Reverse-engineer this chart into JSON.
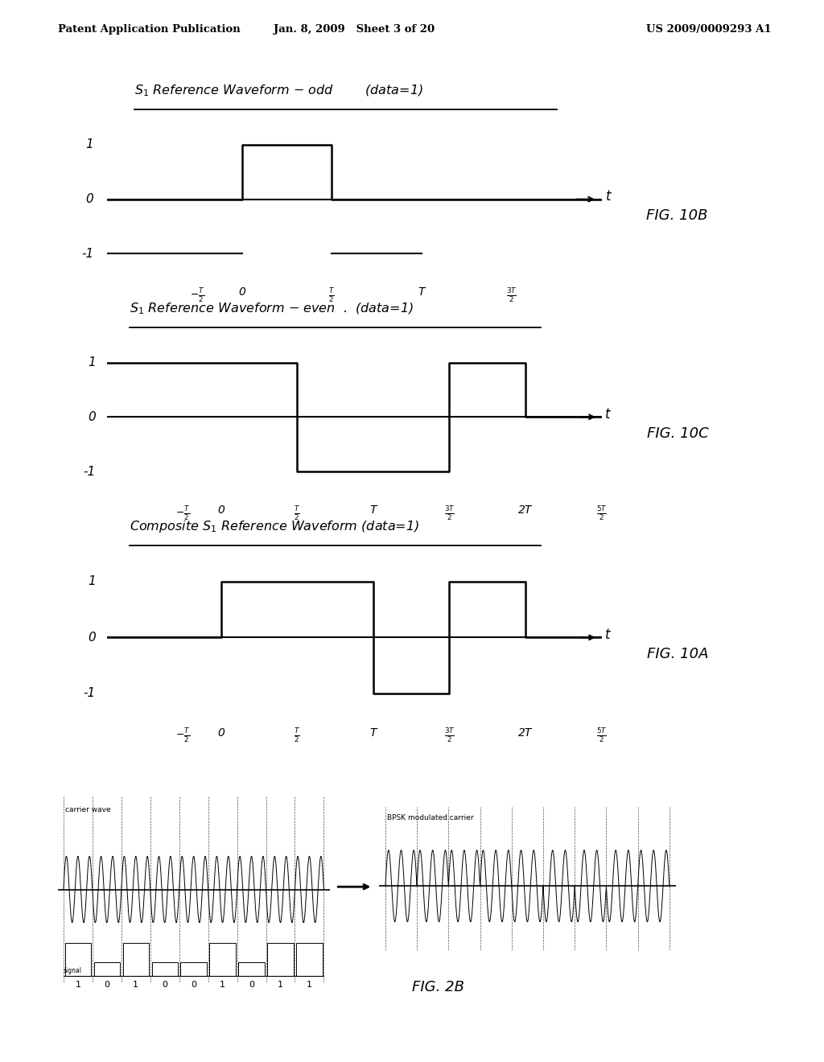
{
  "bg_color": "#ffffff",
  "header_left": "Patent Application Publication",
  "header_mid": "Jan. 8, 2009   Sheet 3 of 20",
  "header_right": "US 2009/0009293 A1",
  "fig10b_label": "FIG. 10B",
  "fig10c_label": "FIG. 10C",
  "fig10a_label": "FIG. 10A",
  "fig2b_label": "FIG. 2B",
  "fig2b_bits": [
    "1",
    "0",
    "1",
    "0",
    "0",
    "1",
    "0",
    "1",
    "1"
  ],
  "page_width": 10.24,
  "page_height": 13.2,
  "dpi": 100
}
